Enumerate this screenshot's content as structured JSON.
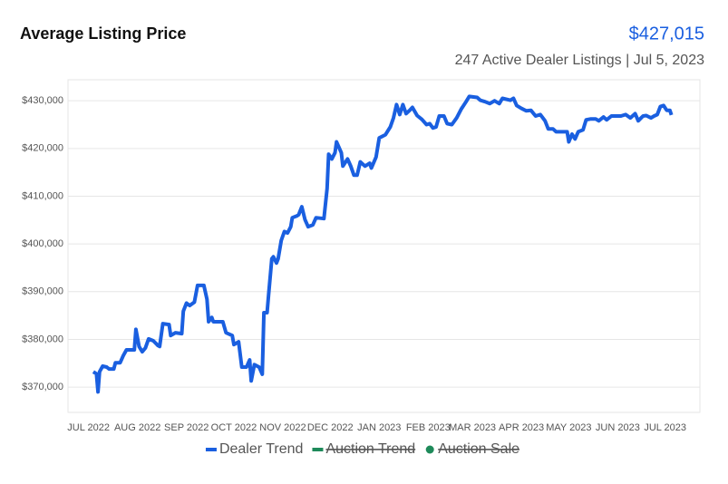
{
  "chart_data": {
    "type": "line",
    "title": "Average Listing Price",
    "price": "$427,015",
    "subtitle": "247 Active Dealer Listings | Jul 5, 2023",
    "x": [
      3,
      5,
      6,
      7,
      9,
      11.5,
      13,
      16,
      17,
      20,
      22,
      24,
      29,
      30,
      32,
      34,
      36,
      38,
      41,
      44,
      45,
      47,
      51,
      52,
      55,
      59,
      60,
      62,
      64,
      67,
      69,
      73,
      75,
      76,
      78,
      79,
      85,
      87,
      91,
      92,
      95,
      97,
      100,
      102,
      103,
      105,
      108,
      110,
      111,
      113,
      114,
      116,
      117,
      119,
      120,
      122,
      124,
      126,
      128,
      129,
      132,
      133,
      135,
      137,
      139,
      142,
      144,
      149,
      151,
      152,
      154,
      156,
      157,
      160,
      161,
      164,
      166,
      168,
      170,
      172,
      175,
      178,
      179,
      182,
      184,
      188,
      191,
      193,
      195,
      197,
      199,
      201,
      203,
      205,
      208,
      211,
      214,
      216,
      218,
      220,
      222,
      225,
      227,
      230,
      233,
      236,
      239,
      241,
      246,
      248,
      251,
      254,
      257,
      260,
      262,
      267,
      269,
      271,
      274,
      277,
      280,
      283,
      286,
      289,
      291,
      294,
      296,
      300,
      303,
      304,
      306,
      308,
      310,
      313,
      315,
      318,
      321,
      323,
      326,
      328,
      331,
      337,
      340,
      343,
      346,
      348,
      351,
      353,
      356,
      358,
      360,
      362,
      364,
      366,
      368,
      369
    ],
    "series": [
      {
        "name": "Dealer Trend",
        "color": "#1a5fe0",
        "values": [
          373200,
          372800,
          369000,
          373200,
          374400,
          374200,
          373800,
          373800,
          375100,
          375100,
          376600,
          377800,
          377800,
          382100,
          378500,
          377400,
          378200,
          380100,
          379700,
          378700,
          378500,
          383300,
          383100,
          380800,
          381400,
          381200,
          385900,
          387600,
          387100,
          387800,
          391300,
          391300,
          388400,
          383700,
          384600,
          383700,
          383700,
          381400,
          380800,
          378900,
          379500,
          374200,
          374200,
          375700,
          371300,
          374700,
          374200,
          372700,
          385600,
          385600,
          389400,
          396900,
          397300,
          396000,
          396900,
          400700,
          402600,
          402300,
          403600,
          405500,
          405900,
          406100,
          407800,
          405100,
          403600,
          404000,
          405500,
          405300,
          411600,
          418800,
          417800,
          419100,
          421400,
          419100,
          416300,
          417800,
          416300,
          414400,
          414400,
          417200,
          416300,
          416900,
          415900,
          418200,
          422200,
          422900,
          424500,
          426400,
          429200,
          427100,
          429200,
          427300,
          427900,
          428600,
          426900,
          426100,
          425000,
          425200,
          424300,
          424500,
          426800,
          426800,
          425200,
          425000,
          426400,
          428300,
          429800,
          430900,
          430700,
          430100,
          429800,
          429400,
          430000,
          429400,
          430500,
          430100,
          430500,
          429000,
          428400,
          427900,
          428000,
          426800,
          427100,
          425800,
          424100,
          424100,
          423500,
          423500,
          423500,
          421400,
          423000,
          422000,
          423500,
          423900,
          426000,
          426200,
          426200,
          425800,
          426600,
          426000,
          426800,
          426800,
          427100,
          426400,
          427300,
          425800,
          426800,
          426900,
          426400,
          426800,
          427100,
          428800,
          429000,
          428000,
          428000,
          427015
        ]
      }
    ],
    "legend_extra": [
      {
        "name": "Auction Trend",
        "color": "#1e8a5a",
        "marker": "line",
        "hidden": true
      },
      {
        "name": "Auction Sale",
        "color": "#1e8a5a",
        "marker": "dot",
        "hidden": true
      }
    ],
    "xlim": [
      -13,
      387
    ],
    "xticks": [
      {
        "value": 0,
        "label": "JUL 2022"
      },
      {
        "value": 31,
        "label": "AUG 2022"
      },
      {
        "value": 62,
        "label": "SEP 2022"
      },
      {
        "value": 92,
        "label": "OCT 2022"
      },
      {
        "value": 123,
        "label": "NOV 2022"
      },
      {
        "value": 153,
        "label": "DEC 2022"
      },
      {
        "value": 184,
        "label": "JAN 2023"
      },
      {
        "value": 215,
        "label": "FEB 2023"
      },
      {
        "value": 243,
        "label": "MAR 2023"
      },
      {
        "value": 274,
        "label": "APR 2023"
      },
      {
        "value": 304,
        "label": "MAY 2023"
      },
      {
        "value": 335,
        "label": "JUN 2023"
      },
      {
        "value": 365,
        "label": "JUL 2023"
      }
    ],
    "ylim": [
      364700,
      434400
    ],
    "yticks": [
      {
        "value": 370000,
        "label": "$370,000"
      },
      {
        "value": 380000,
        "label": "$380,000"
      },
      {
        "value": 390000,
        "label": "$390,000"
      },
      {
        "value": 400000,
        "label": "$400,000"
      },
      {
        "value": 410000,
        "label": "$410,000"
      },
      {
        "value": 420000,
        "label": "$420,000"
      },
      {
        "value": 430000,
        "label": "$430,000"
      }
    ],
    "grid": true
  }
}
